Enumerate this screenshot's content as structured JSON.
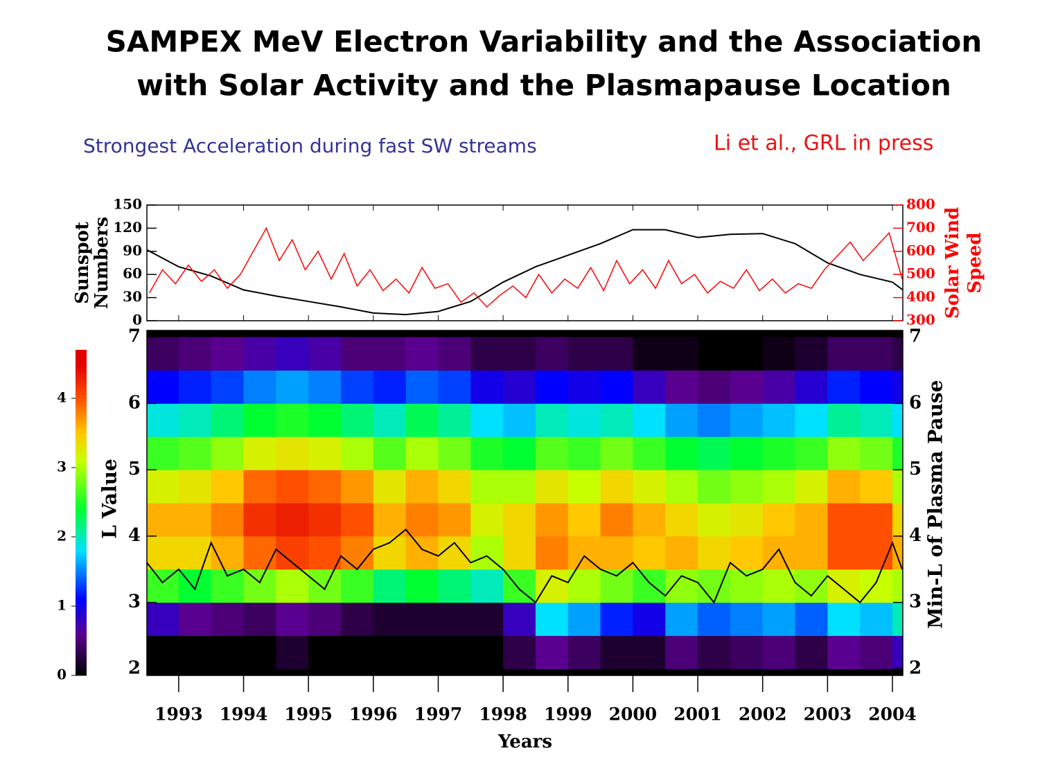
{
  "header": {
    "title_lines": [
      "SAMPEX MeV Electron Variability and the Association",
      "with Solar Activity and the Plasmapause Location"
    ],
    "note_left": "Strongest Acceleration during fast SW streams",
    "note_right": "Li et al., GRL in press"
  },
  "chart_data": [
    {
      "type": "line",
      "ylabel": [
        "Sunspot",
        "Numbers"
      ],
      "y2label": [
        "Solar Wind",
        "Speed"
      ],
      "xlim": [
        1992.51,
        2004.16
      ],
      "xticks": [
        1993,
        1994,
        1995,
        1996,
        1997,
        1998,
        1999,
        2000,
        2001,
        2002,
        2003,
        2004
      ],
      "ylim": [
        0,
        150
      ],
      "yticks": [
        0,
        30,
        60,
        90,
        120,
        150
      ],
      "y2lim": [
        300,
        800
      ],
      "y2ticks": [
        300,
        400,
        500,
        600,
        700,
        800
      ],
      "series": [
        {
          "color": "#000000",
          "x": [
            1992.51,
            1993,
            1993.5,
            1994,
            1994.5,
            1995,
            1995.5,
            1996,
            1996.5,
            1997,
            1997.5,
            1998,
            1998.5,
            1999,
            1999.5,
            2000,
            2000.5,
            2001,
            2001.5,
            2002,
            2002.5,
            2003,
            2003.5,
            2004,
            2004.16
          ],
          "values": [
            92,
            70,
            58,
            40,
            32,
            25,
            18,
            10,
            8,
            12,
            25,
            50,
            70,
            85,
            100,
            118,
            118,
            108,
            112,
            113,
            100,
            75,
            60,
            50,
            40
          ]
        },
        {
          "color": "#ff0000",
          "axis": "y2",
          "x": [
            1992.55,
            1992.75,
            1992.95,
            1993.15,
            1993.35,
            1993.55,
            1993.75,
            1993.95,
            1994.15,
            1994.35,
            1994.55,
            1994.75,
            1994.95,
            1995.15,
            1995.35,
            1995.55,
            1995.75,
            1995.95,
            1996.15,
            1996.35,
            1996.55,
            1996.75,
            1996.95,
            1997.15,
            1997.35,
            1997.55,
            1997.75,
            1997.95,
            1998.15,
            1998.35,
            1998.55,
            1998.75,
            1998.95,
            1999.15,
            1999.35,
            1999.55,
            1999.75,
            1999.95,
            2000.15,
            2000.35,
            2000.55,
            2000.75,
            2000.95,
            2001.15,
            2001.35,
            2001.55,
            2001.75,
            2001.95,
            2002.15,
            2002.35,
            2002.55,
            2002.75,
            2002.95,
            2003.15,
            2003.35,
            2003.55,
            2003.75,
            2003.95,
            2004.15
          ],
          "values": [
            420,
            520,
            460,
            540,
            470,
            520,
            440,
            500,
            600,
            700,
            560,
            650,
            520,
            600,
            480,
            590,
            450,
            520,
            430,
            480,
            420,
            530,
            440,
            460,
            380,
            420,
            360,
            410,
            450,
            400,
            500,
            420,
            480,
            440,
            530,
            430,
            560,
            460,
            520,
            440,
            560,
            460,
            500,
            420,
            470,
            440,
            520,
            430,
            480,
            420,
            460,
            440,
            520,
            580,
            640,
            560,
            620,
            680,
            480
          ]
        }
      ]
    },
    {
      "type": "heatmap",
      "ylabel": "L Value",
      "y2label": "Min-L of Plasma Pause",
      "xlabel": "Years",
      "xlim": [
        1992.51,
        2004.16
      ],
      "xticks": [
        1993,
        1994,
        1995,
        1996,
        1997,
        1998,
        1999,
        2000,
        2001,
        2002,
        2003,
        2004
      ],
      "ylim": [
        1.9,
        7.1
      ],
      "yticks": [
        2,
        3,
        4,
        5,
        6,
        7
      ],
      "y2lim": [
        1.9,
        7.1
      ],
      "y2ticks": [
        2,
        3,
        4,
        5,
        6,
        7
      ],
      "x_edges": [
        1992.51,
        1993,
        1993.5,
        1994,
        1994.5,
        1995,
        1995.5,
        1996,
        1996.5,
        1997,
        1997.5,
        1998,
        1998.5,
        1999,
        1999.5,
        2000,
        2000.5,
        2001,
        2001.5,
        2002,
        2002.5,
        2003,
        2003.5,
        2004,
        2004.16
      ],
      "y_edges": [
        2,
        2.5,
        3,
        3.5,
        4,
        4.5,
        5,
        5.5,
        6,
        6.5,
        7
      ],
      "z": [
        [
          0,
          0,
          0,
          0,
          0.2,
          0,
          0,
          0,
          0,
          0,
          0,
          0.3,
          0.6,
          0.4,
          0.2,
          0.2,
          0.5,
          0.3,
          0.4,
          0.5,
          0.3,
          0.6,
          0.5,
          0.8
        ],
        [
          0.8,
          0.6,
          0.5,
          0.4,
          0.6,
          0.5,
          0.3,
          0.2,
          0.2,
          0.2,
          0.2,
          0.8,
          1.8,
          1.6,
          1.2,
          1.0,
          1.6,
          1.4,
          1.5,
          1.6,
          1.4,
          1.8,
          1.7,
          2.0
        ],
        [
          2.6,
          2.4,
          2.6,
          2.8,
          3.0,
          2.8,
          2.6,
          2.2,
          2.4,
          2.2,
          2.0,
          2.6,
          3.2,
          3.0,
          2.8,
          2.6,
          2.9,
          2.8,
          2.9,
          3.0,
          2.9,
          3.2,
          3.1,
          3.0
        ],
        [
          3.4,
          3.4,
          3.6,
          3.9,
          4.1,
          4.0,
          3.8,
          3.4,
          3.6,
          3.4,
          3.0,
          3.4,
          3.8,
          3.6,
          3.6,
          3.5,
          3.6,
          3.4,
          3.5,
          3.6,
          3.6,
          4.0,
          4.0,
          3.6
        ],
        [
          3.6,
          3.6,
          3.8,
          4.2,
          4.3,
          4.2,
          4.0,
          3.6,
          3.8,
          3.7,
          3.2,
          3.4,
          3.7,
          3.5,
          3.8,
          3.6,
          3.4,
          3.2,
          3.3,
          3.5,
          3.6,
          4.0,
          4.0,
          3.4
        ],
        [
          3.2,
          3.3,
          3.5,
          3.9,
          4.0,
          3.9,
          3.7,
          3.3,
          3.6,
          3.4,
          3.0,
          3.0,
          3.3,
          3.1,
          3.4,
          3.2,
          3.0,
          2.8,
          2.9,
          3.0,
          3.2,
          3.6,
          3.5,
          3.0
        ],
        [
          2.6,
          2.7,
          2.9,
          3.2,
          3.3,
          3.2,
          3.0,
          2.7,
          3.0,
          2.8,
          2.5,
          2.4,
          2.7,
          2.6,
          2.8,
          2.6,
          2.4,
          2.3,
          2.4,
          2.5,
          2.6,
          2.9,
          2.8,
          2.5
        ],
        [
          1.9,
          2.0,
          2.2,
          2.4,
          2.5,
          2.4,
          2.2,
          2.0,
          2.3,
          2.1,
          1.8,
          1.7,
          2.0,
          1.9,
          2.0,
          1.8,
          1.6,
          1.5,
          1.6,
          1.7,
          1.8,
          2.1,
          2.0,
          1.8
        ],
        [
          1.1,
          1.2,
          1.3,
          1.5,
          1.6,
          1.5,
          1.3,
          1.2,
          1.4,
          1.3,
          1.0,
          0.9,
          1.1,
          1.0,
          1.1,
          0.8,
          0.6,
          0.5,
          0.6,
          0.7,
          0.9,
          1.2,
          1.1,
          1.0
        ],
        [
          0.4,
          0.5,
          0.6,
          0.7,
          0.8,
          0.7,
          0.5,
          0.5,
          0.6,
          0.5,
          0.3,
          0.3,
          0.4,
          0.3,
          0.3,
          0.1,
          0.1,
          0.0,
          0.0,
          0.1,
          0.2,
          0.4,
          0.4,
          0.3
        ]
      ],
      "clim": [
        0,
        4.7
      ],
      "cticks": [
        0,
        1,
        2,
        3,
        4
      ],
      "series": [
        {
          "color": "#000000",
          "axis": "y2",
          "x": [
            1992.51,
            1992.75,
            1993,
            1993.25,
            1993.5,
            1993.75,
            1994,
            1994.25,
            1994.5,
            1994.75,
            1995,
            1995.25,
            1995.5,
            1995.75,
            1996,
            1996.25,
            1996.5,
            1996.75,
            1997,
            1997.25,
            1997.5,
            1997.75,
            1998,
            1998.25,
            1998.5,
            1998.75,
            1999,
            1999.25,
            1999.5,
            1999.75,
            2000,
            2000.25,
            2000.5,
            2000.75,
            2001,
            2001.25,
            2001.5,
            2001.75,
            2002,
            2002.25,
            2002.5,
            2002.75,
            2003,
            2003.25,
            2003.5,
            2003.75,
            2004,
            2004.15
          ],
          "values": [
            3.6,
            3.3,
            3.5,
            3.2,
            3.9,
            3.4,
            3.5,
            3.3,
            3.8,
            3.6,
            3.4,
            3.2,
            3.7,
            3.5,
            3.8,
            3.9,
            4.1,
            3.8,
            3.7,
            3.9,
            3.6,
            3.7,
            3.5,
            3.2,
            3.0,
            3.4,
            3.3,
            3.7,
            3.5,
            3.4,
            3.6,
            3.3,
            3.1,
            3.4,
            3.3,
            3.0,
            3.6,
            3.4,
            3.5,
            3.8,
            3.3,
            3.1,
            3.4,
            3.2,
            3.0,
            3.3,
            3.9,
            3.5
          ]
        }
      ]
    }
  ]
}
